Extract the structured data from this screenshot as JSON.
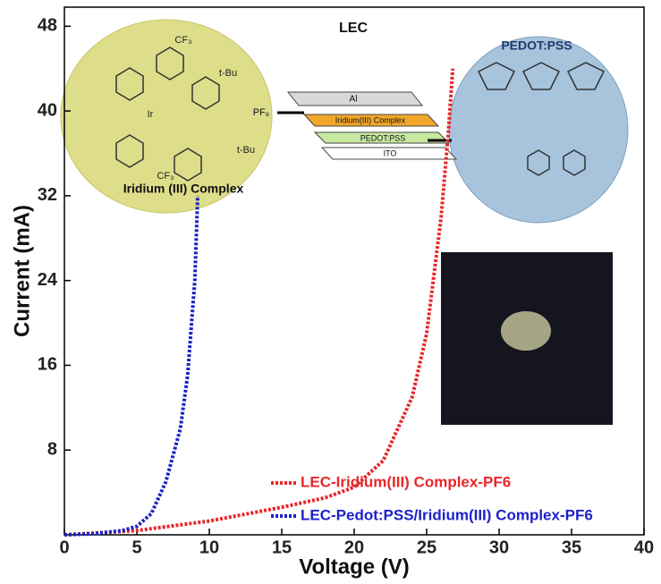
{
  "chart_data": {
    "type": "line",
    "x_label": "Voltage (V)",
    "y_label": "Current (mA)",
    "xlim": [
      0,
      40
    ],
    "ylim": [
      0,
      49.8
    ],
    "xticks": [
      0,
      5,
      10,
      15,
      20,
      25,
      30,
      35,
      40
    ],
    "yticks": [
      8,
      16,
      24,
      32,
      40,
      48
    ],
    "series": [
      {
        "name": "LEC-Iridium(III) Complex-PF6",
        "color": "#e8262a",
        "x": [
          0,
          5,
          10,
          15,
          18,
          20,
          22,
          24,
          25,
          26,
          26.5,
          26.8
        ],
        "values": [
          0,
          0.4,
          1.3,
          2.6,
          3.5,
          4.5,
          7,
          13,
          19,
          30,
          38,
          44
        ]
      },
      {
        "name": "LEC-Pedot:PSS/Iridium(III) Complex-PF6",
        "color": "#1c22c8",
        "x": [
          0,
          2,
          4,
          5,
          6,
          7,
          8,
          8.5,
          9,
          9.2
        ],
        "values": [
          0,
          0.1,
          0.4,
          0.8,
          2,
          5,
          10,
          15,
          24,
          32
        ]
      }
    ],
    "annotations": [
      "LEC",
      "Iridium (III) Complex",
      "PEDOT:PSS",
      "Al",
      "Iridium(III) Complex",
      "PEDOT:PSS",
      "ITO",
      "PF₆",
      "CF₃",
      "t-Bu",
      "Ir",
      "t-Bu",
      "CF₃"
    ]
  }
}
